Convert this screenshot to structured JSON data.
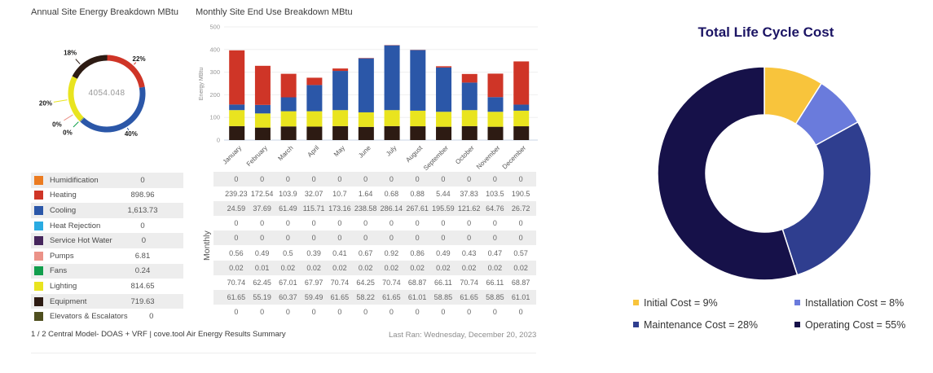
{
  "footer": {
    "left": "1 / 2 Central Model- DOAS + VRF | cove.tool Air Energy Results Summary",
    "right": "Last Ran: Wednesday, December 20, 2023"
  },
  "chart_data": [
    {
      "id": "annual_donut",
      "type": "pie",
      "title": "Annual Site Energy Breakdown MBtu",
      "center_total": "4054.048",
      "slices": [
        {
          "label": "Heating",
          "pct_label": "22%",
          "value": 898.96,
          "color": "#cf3527"
        },
        {
          "label": "Cooling",
          "pct_label": "40%",
          "value": 1613.73,
          "color": "#2b57a8"
        },
        {
          "label": "Pumps",
          "pct_label": "0%",
          "value": 6.81,
          "color": "#eb9288"
        },
        {
          "label": "Fans",
          "pct_label": "0%",
          "value": 0.24,
          "color": "#129e4d"
        },
        {
          "label": "Lighting",
          "pct_label": "20%",
          "value": 814.65,
          "color": "#e9e41f"
        },
        {
          "label": "Equipment",
          "pct_label": "18%",
          "value": 719.63,
          "color": "#2d1b13"
        }
      ],
      "legend": [
        {
          "label": "Humidification",
          "value": "0",
          "color": "#eb7b20"
        },
        {
          "label": "Heating",
          "value": "898.96",
          "color": "#cf3527"
        },
        {
          "label": "Cooling",
          "value": "1,613.73",
          "color": "#2b57a8"
        },
        {
          "label": "Heat Rejection",
          "value": "0",
          "color": "#2aabe2"
        },
        {
          "label": "Service Hot Water",
          "value": "0",
          "color": "#46265c"
        },
        {
          "label": "Pumps",
          "value": "6.81",
          "color": "#eb9288"
        },
        {
          "label": "Fans",
          "value": "0.24",
          "color": "#129e4d"
        },
        {
          "label": "Lighting",
          "value": "814.65",
          "color": "#e9e41f"
        },
        {
          "label": "Equipment",
          "value": "719.63",
          "color": "#2d1b13"
        },
        {
          "label": "Elevators & Escalators",
          "value": "0",
          "color": "#4f4f1f"
        }
      ]
    },
    {
      "id": "monthly_stacked_bar",
      "type": "bar",
      "title": "Monthly Site End Use Breakdown MBtu",
      "ylabel": "Energy MBtu",
      "row_axis_label": "Monthly",
      "ylim": [
        0,
        500
      ],
      "yticks": [
        0,
        100,
        200,
        300,
        400,
        500
      ],
      "categories": [
        "January",
        "February",
        "March",
        "April",
        "May",
        "June",
        "July",
        "August",
        "September",
        "October",
        "November",
        "December"
      ],
      "stack_order": [
        "Equipment",
        "Lighting",
        "Cooling",
        "Heating",
        "Pumps",
        "Fans"
      ],
      "series": [
        {
          "name": "Humidification",
          "color": "#eb7b20",
          "values": [
            "0",
            "0",
            "0",
            "0",
            "0",
            "0",
            "0",
            "0",
            "0",
            "0",
            "0",
            "0"
          ]
        },
        {
          "name": "Heating",
          "color": "#cf3527",
          "values": [
            "239.23",
            "172.54",
            "103.9",
            "32.07",
            "10.7",
            "1.64",
            "0.68",
            "0.88",
            "5.44",
            "37.83",
            "103.5",
            "190.5"
          ]
        },
        {
          "name": "Cooling",
          "color": "#2b57a8",
          "values": [
            "24.59",
            "37.69",
            "61.49",
            "115.71",
            "173.16",
            "238.58",
            "286.14",
            "267.61",
            "195.59",
            "121.62",
            "64.76",
            "26.72"
          ]
        },
        {
          "name": "Heat Rejection",
          "color": "#2aabe2",
          "values": [
            "0",
            "0",
            "0",
            "0",
            "0",
            "0",
            "0",
            "0",
            "0",
            "0",
            "0",
            "0"
          ]
        },
        {
          "name": "Service Hot Water",
          "color": "#46265c",
          "values": [
            "0",
            "0",
            "0",
            "0",
            "0",
            "0",
            "0",
            "0",
            "0",
            "0",
            "0",
            "0"
          ]
        },
        {
          "name": "Pumps",
          "color": "#eb9288",
          "values": [
            "0.56",
            "0.49",
            "0.5",
            "0.39",
            "0.41",
            "0.67",
            "0.92",
            "0.86",
            "0.49",
            "0.43",
            "0.47",
            "0.57"
          ]
        },
        {
          "name": "Fans",
          "color": "#129e4d",
          "values": [
            "0.02",
            "0.01",
            "0.02",
            "0.02",
            "0.02",
            "0.02",
            "0.02",
            "0.02",
            "0.02",
            "0.02",
            "0.02",
            "0.02"
          ]
        },
        {
          "name": "Lighting",
          "color": "#e9e41f",
          "values": [
            "70.74",
            "62.45",
            "67.01",
            "67.97",
            "70.74",
            "64.25",
            "70.74",
            "68.87",
            "66.11",
            "70.74",
            "66.11",
            "68.87"
          ]
        },
        {
          "name": "Equipment",
          "color": "#2d1b13",
          "values": [
            "61.65",
            "55.19",
            "60.37",
            "59.49",
            "61.65",
            "58.22",
            "61.65",
            "61.01",
            "58.85",
            "61.65",
            "58.85",
            "61.01"
          ]
        },
        {
          "name": "Elevators & Escalators",
          "color": "#4f4f1f",
          "values": [
            "0",
            "0",
            "0",
            "0",
            "0",
            "0",
            "0",
            "0",
            "0",
            "0",
            "0",
            "0"
          ]
        }
      ]
    },
    {
      "id": "lifecycle_donut",
      "type": "pie",
      "title": "Total Life Cycle Cost",
      "title_color": "#1b1464",
      "slices": [
        {
          "label": "Initial Cost",
          "pct": 9,
          "color": "#f8c43c",
          "legend_label": "Initial Cost = 9%"
        },
        {
          "label": "Installation Cost",
          "pct": 8,
          "color": "#6a7bdc",
          "legend_label": "Installation Cost = 8%"
        },
        {
          "label": "Maintenance Cost",
          "pct": 28,
          "color": "#2f3e8f",
          "legend_label": "Maintenance Cost = 28%"
        },
        {
          "label": "Operating Cost",
          "pct": 55,
          "color": "#161149",
          "legend_label": "Operating Cost = 55%"
        }
      ]
    }
  ]
}
